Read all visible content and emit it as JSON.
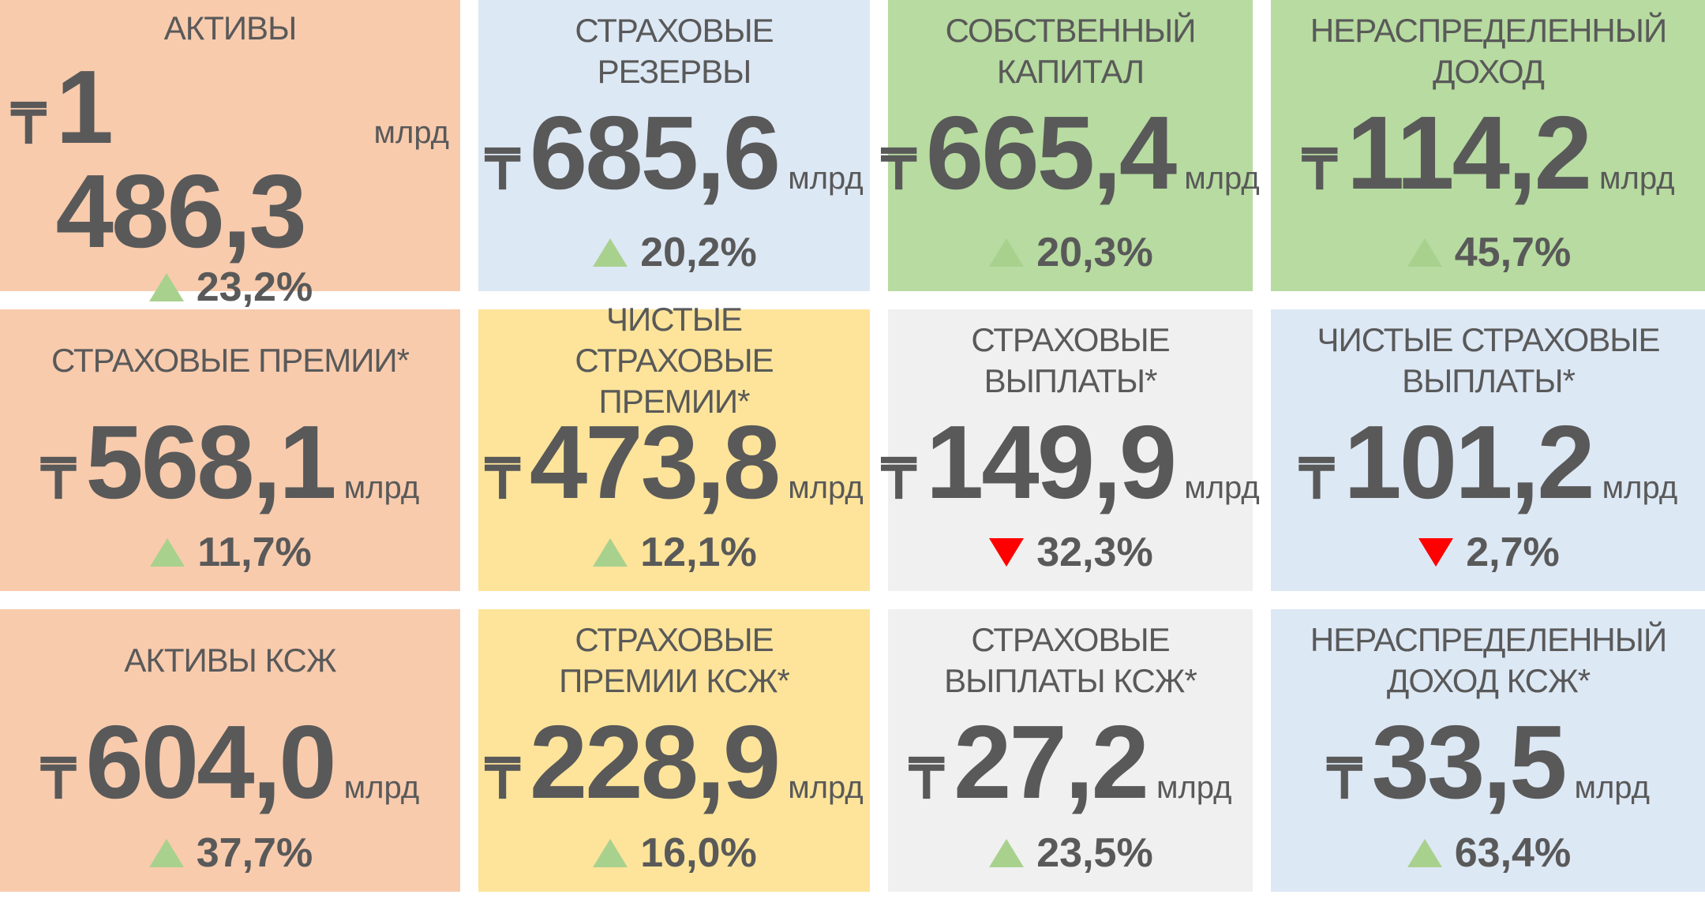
{
  "currency": "₸",
  "unit": "млрд",
  "tiles": [
    {
      "title": "АКТИВЫ",
      "value": "1 486,3",
      "change": "23,2%",
      "trend": "up",
      "color": "#f8cbad"
    },
    {
      "title": "СТРАХОВЫЕ РЕЗЕРВЫ",
      "value": "685,6",
      "change": "20,2%",
      "trend": "up",
      "color": "#dde8f5"
    },
    {
      "title": "СОБСТВЕННЫЙ КАПИТАЛ",
      "value": "665,4",
      "change": "20,3%",
      "trend": "up",
      "color": "#b7dba0"
    },
    {
      "title": "НЕРАСПРЕДЕЛЕННЫЙ ДОХОД",
      "value": "114,2",
      "change": "45,7%",
      "trend": "up",
      "color": "#b7dba0"
    },
    {
      "title": "СТРАХОВЫЕ ПРЕМИИ*",
      "value": "568,1",
      "change": "11,7%",
      "trend": "up",
      "color": "#f8cbad"
    },
    {
      "title": "ЧИСТЫЕ СТРАХОВЫЕ ПРЕМИИ*",
      "value": "473,8",
      "change": "12,1%",
      "trend": "up",
      "color": "#fde49a"
    },
    {
      "title": "СТРАХОВЫЕ ВЫПЛАТЫ*",
      "value": "149,9",
      "change": "32,3%",
      "trend": "down",
      "color": "#f0f0f0"
    },
    {
      "title": "ЧИСТЫЕ СТРАХОВЫЕ ВЫПЛАТЫ*",
      "value": "101,2",
      "change": "2,7%",
      "trend": "down",
      "color": "#dde8f5"
    },
    {
      "title": "АКТИВЫ КСЖ",
      "value": "604,0",
      "change": "37,7%",
      "trend": "up",
      "color": "#f8cbad"
    },
    {
      "title": "СТРАХОВЫЕ ПРЕМИИ КСЖ*",
      "value": "228,9",
      "change": "16,0%",
      "trend": "up",
      "color": "#fde49a"
    },
    {
      "title": "СТРАХОВЫЕ ВЫПЛАТЫ КСЖ*",
      "value": "27,2",
      "change": "23,5%",
      "trend": "up",
      "color": "#f0f0f0"
    },
    {
      "title": "НЕРАСПРЕДЕЛЕННЫЙ ДОХОД КСЖ*",
      "value": "33,5",
      "change": "63,4%",
      "trend": "up",
      "color": "#dde8f5"
    }
  ]
}
